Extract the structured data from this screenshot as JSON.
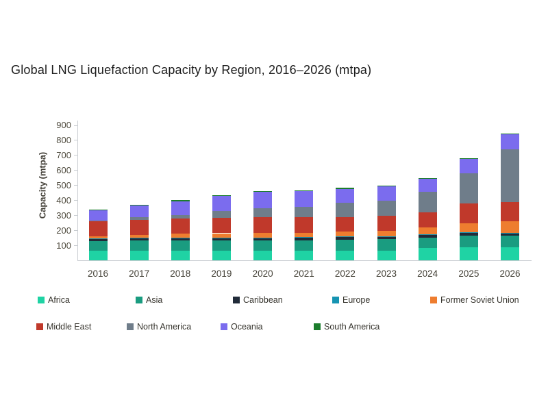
{
  "title": "Global LNG Liquefaction Capacity by Region, 2016–2026 (mtpa)",
  "chart_data": {
    "type": "bar",
    "stacked": true,
    "title": "Global LNG Liquefaction Capacity by Region, 2016–2026 (mtpa)",
    "xlabel": "",
    "ylabel": "Capacity (mtpa)",
    "ylim": [
      0,
      900
    ],
    "ytick_step": 100,
    "ytick_labels": [
      "100",
      "200",
      "300",
      "400",
      "500",
      "600",
      "700",
      "800",
      "900"
    ],
    "grid": false,
    "legend_position": "bottom",
    "categories": [
      "2016",
      "2017",
      "2018",
      "2019",
      "2020",
      "2021",
      "2022",
      "2023",
      "2024",
      "2025",
      "2026"
    ],
    "series": [
      {
        "name": "Africa",
        "color": "#1fd3a4",
        "values": [
          62,
          66,
          66,
          66,
          62,
          62,
          63,
          65,
          80,
          88,
          85
        ]
      },
      {
        "name": "Asia",
        "color": "#1a9c80",
        "values": [
          66,
          66,
          64,
          65,
          70,
          72,
          75,
          75,
          72,
          78,
          79
        ]
      },
      {
        "name": "Caribbean",
        "color": "#212b39",
        "values": [
          15,
          15,
          15,
          15,
          15,
          15,
          15,
          15,
          15,
          15,
          15
        ]
      },
      {
        "name": "Europe",
        "color": "#1694b2",
        "values": [
          5,
          5,
          5,
          5,
          5,
          5,
          5,
          5,
          5,
          5,
          5
        ]
      },
      {
        "name": "Former Soviet Union",
        "color": "#ee7d2f",
        "values": [
          11,
          18,
          27,
          29,
          30,
          30,
          33,
          35,
          45,
          62,
          75
        ]
      },
      {
        "name": "Middle East",
        "color": "#c0392b",
        "values": [
          100,
          100,
          100,
          102,
          105,
          105,
          98,
          102,
          100,
          128,
          128
        ]
      },
      {
        "name": "North America",
        "color": "#6f7d8a",
        "values": [
          5,
          15,
          25,
          45,
          60,
          68,
          95,
          100,
          138,
          205,
          350
        ]
      },
      {
        "name": "Oceania",
        "color": "#7b6cee",
        "values": [
          68,
          78,
          92,
          102,
          108,
          104,
          92,
          95,
          88,
          93,
          100
        ]
      },
      {
        "name": "South America",
        "color": "#1b7d2c",
        "values": [
          5,
          5,
          5,
          5,
          5,
          5,
          5,
          5,
          5,
          5,
          5
        ]
      }
    ]
  }
}
